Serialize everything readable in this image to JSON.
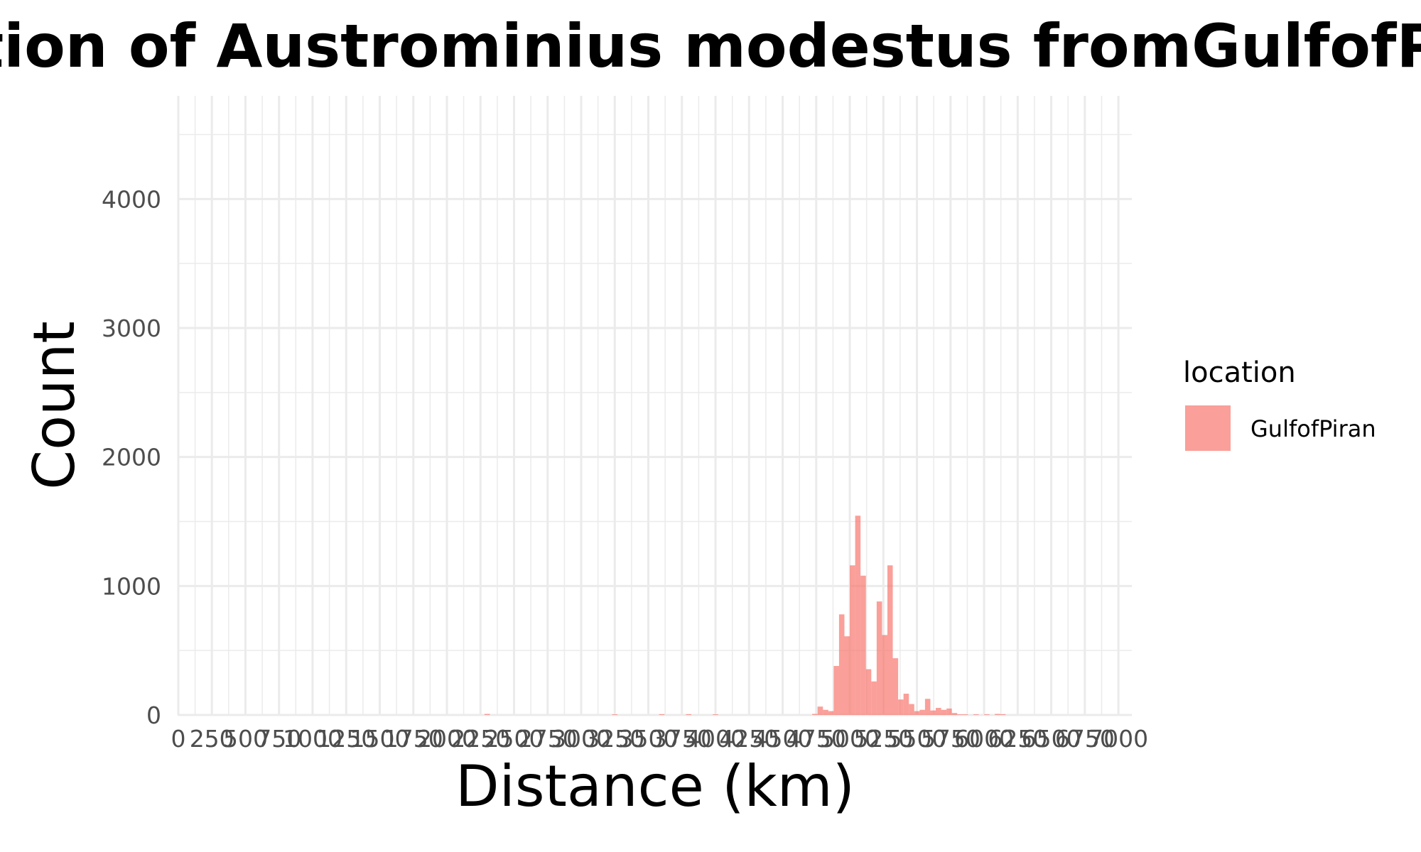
{
  "chart_data": {
    "type": "bar",
    "title": "Distribution of Austrominius modestus fromGulfofPiran",
    "xlabel": "Distance (km)",
    "ylabel": "Count",
    "xlim": [
      -5,
      7100
    ],
    "ylim": [
      0,
      4800
    ],
    "grid": true,
    "x_major_ticks": [
      0,
      250,
      500,
      750,
      1000,
      1250,
      1500,
      1750,
      2000,
      2250,
      2500,
      2750,
      3000,
      3250,
      3500,
      3750,
      4000,
      4250,
      4500,
      4750,
      5000,
      5250,
      5500,
      5750,
      6000,
      6250,
      6500,
      6750,
      7000
    ],
    "y_major_ticks": [
      0,
      1000,
      2000,
      3000,
      4000
    ],
    "legend": {
      "title": "location",
      "position": "right",
      "entries": [
        {
          "label": "GulfofPiran",
          "color": "#F8766D"
        }
      ]
    },
    "series": [
      {
        "name": "GulfofPiran",
        "color": "#F8766D",
        "bin_width": 40,
        "bins": [
          [
            2280,
            8
          ],
          [
            3230,
            5
          ],
          [
            3580,
            6
          ],
          [
            3780,
            6
          ],
          [
            3980,
            5
          ],
          [
            4720,
            8
          ],
          [
            4760,
            65
          ],
          [
            4800,
            40
          ],
          [
            4840,
            30
          ],
          [
            4880,
            380
          ],
          [
            4920,
            780
          ],
          [
            4960,
            610
          ],
          [
            5000,
            1160
          ],
          [
            5040,
            1545
          ],
          [
            5080,
            1080
          ],
          [
            5120,
            355
          ],
          [
            5160,
            260
          ],
          [
            5200,
            880
          ],
          [
            5240,
            620
          ],
          [
            5280,
            1160
          ],
          [
            5320,
            440
          ],
          [
            5360,
            120
          ],
          [
            5400,
            165
          ],
          [
            5440,
            85
          ],
          [
            5480,
            30
          ],
          [
            5520,
            40
          ],
          [
            5560,
            125
          ],
          [
            5600,
            35
          ],
          [
            5640,
            55
          ],
          [
            5680,
            40
          ],
          [
            5720,
            50
          ],
          [
            5760,
            15
          ],
          [
            5800,
            5
          ],
          [
            5840,
            5
          ],
          [
            5920,
            5
          ],
          [
            6000,
            5
          ],
          [
            6080,
            8
          ],
          [
            6120,
            6
          ]
        ]
      }
    ]
  }
}
